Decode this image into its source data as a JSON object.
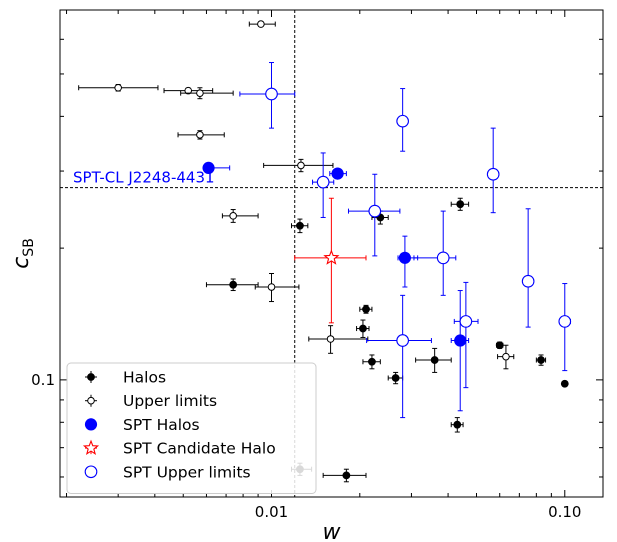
{
  "chart_data": {
    "type": "scatter",
    "xlabel": "w",
    "ylabel": "c",
    "ylabel_sub": "SB",
    "xscale": "log",
    "yscale": "log",
    "xlim": [
      0.0019,
      0.135
    ],
    "ylim": [
      0.054,
      0.7
    ],
    "xticks": [
      {
        "value": 0.01,
        "label": "0.01"
      },
      {
        "value": 0.1,
        "label": "0.10"
      }
    ],
    "yticks": [
      {
        "value": 0.1,
        "label": "0.1"
      }
    ],
    "reference_lines": {
      "vertical_x": 0.012,
      "horizontal_y": 0.275
    },
    "annotation": {
      "text": "SPT-CL J2248-4431",
      "color": "#0000ff"
    },
    "legend_position": "lower-left",
    "series": [
      {
        "name": "Halos",
        "color": "#000000",
        "marker": "filled-circle",
        "points": [
          {
            "x": 0.0074,
            "y": 0.165,
            "xerr": [
              0.0014,
              0.0016
            ],
            "yerr": [
              0.005,
              0.005
            ]
          },
          {
            "x": 0.0125,
            "y": 0.225,
            "xerr": [
              0.0008,
              0.0008
            ],
            "yerr": [
              0.008,
              0.008
            ]
          },
          {
            "x": 0.0235,
            "y": 0.235,
            "xerr": [
              0.0015,
              0.0015
            ],
            "yerr": [
              0.008,
              0.008
            ]
          },
          {
            "x": 0.044,
            "y": 0.252,
            "xerr": [
              0.003,
              0.003
            ],
            "yerr": [
              0.008,
              0.008
            ]
          },
          {
            "x": 0.021,
            "y": 0.145,
            "xerr": [
              0.001,
              0.001
            ],
            "yerr": [
              0.003,
              0.003
            ]
          },
          {
            "x": 0.0205,
            "y": 0.131,
            "xerr": [
              0.001,
              0.001
            ],
            "yerr": [
              0.006,
              0.006
            ]
          },
          {
            "x": 0.022,
            "y": 0.11,
            "xerr": [
              0.0015,
              0.0015
            ],
            "yerr": [
              0.004,
              0.004
            ]
          },
          {
            "x": 0.0265,
            "y": 0.101,
            "xerr": [
              0.0015,
              0.0015
            ],
            "yerr": [
              0.003,
              0.003
            ]
          },
          {
            "x": 0.036,
            "y": 0.111,
            "xerr": [
              0.005,
              0.005
            ],
            "yerr": [
              0.007,
              0.007
            ]
          },
          {
            "x": 0.043,
            "y": 0.079,
            "xerr": [
              0.002,
              0.002
            ],
            "yerr": [
              0.003,
              0.003
            ]
          },
          {
            "x": 0.06,
            "y": 0.12,
            "xerr": [
              0.0015,
              0.0015
            ],
            "yerr": [
              0.002,
              0.002
            ]
          },
          {
            "x": 0.083,
            "y": 0.111,
            "xerr": [
              0.003,
              0.003
            ],
            "yerr": [
              0.003,
              0.003
            ]
          },
          {
            "x": 0.1,
            "y": 0.098,
            "xerr": [
              0.0,
              0.0
            ],
            "yerr": [
              0.0,
              0.0
            ]
          },
          {
            "x": 0.0125,
            "y": 0.0625,
            "xerr": [
              0.0008,
              0.0012
            ],
            "yerr": [
              0.002,
              0.002
            ]
          },
          {
            "x": 0.018,
            "y": 0.0605,
            "xerr": [
              0.003,
              0.003
            ],
            "yerr": [
              0.002,
              0.002
            ]
          }
        ]
      },
      {
        "name": "Upper limits",
        "color": "#000000",
        "marker": "open-circle",
        "points": [
          {
            "x": 0.0092,
            "y": 0.65,
            "xerr": [
              0.0008,
              0.0011
            ],
            "yerr": [
              0.005,
              0.005
            ]
          },
          {
            "x": 0.003,
            "y": 0.465,
            "xerr": [
              0.0008,
              0.0011
            ],
            "yerr": [
              0.008,
              0.008
            ]
          },
          {
            "x": 0.0052,
            "y": 0.458,
            "xerr": [
              0.0009,
              0.0011
            ],
            "yerr": [
              0.006,
              0.006
            ]
          },
          {
            "x": 0.0057,
            "y": 0.452,
            "xerr": [
              0.0008,
              0.0017
            ],
            "yerr": [
              0.013,
              0.013
            ]
          },
          {
            "x": 0.0057,
            "y": 0.363,
            "xerr": [
              0.0009,
              0.0012
            ],
            "yerr": [
              0.008,
              0.008
            ]
          },
          {
            "x": 0.0126,
            "y": 0.309,
            "xerr": [
              0.0032,
              0.0036
            ],
            "yerr": [
              0.01,
              0.01
            ]
          },
          {
            "x": 0.0074,
            "y": 0.237,
            "xerr": [
              0.0006,
              0.0016
            ],
            "yerr": [
              0.008,
              0.008
            ]
          },
          {
            "x": 0.01,
            "y": 0.163,
            "xerr": [
              0.0012,
              0.0024
            ],
            "yerr": [
              0.012,
              0.012
            ]
          },
          {
            "x": 0.0159,
            "y": 0.124,
            "xerr": [
              0.0025,
              0.0054
            ],
            "yerr": [
              0.009,
              0.009
            ]
          },
          {
            "x": 0.063,
            "y": 0.113,
            "xerr": [
              0.004,
              0.004
            ],
            "yerr": [
              0.007,
              0.007
            ]
          }
        ]
      },
      {
        "name": "SPT Halos",
        "color": "#0000ff",
        "marker": "filled-circle-large",
        "points": [
          {
            "x": 0.0061,
            "y": 0.305,
            "xerr": [
              0.0,
              0.0011
            ],
            "yerr": [
              0.0,
              0.0
            ]
          },
          {
            "x": 0.0168,
            "y": 0.296,
            "xerr": [
              0.001,
              0.0012
            ],
            "yerr": [
              0.0,
              0.0
            ]
          },
          {
            "x": 0.0285,
            "y": 0.19,
            "xerr": [
              0.0015,
              0.003
            ],
            "yerr": [
              0.027,
              0.023
            ]
          },
          {
            "x": 0.044,
            "y": 0.123,
            "xerr": [
              0.003,
              0.003
            ],
            "yerr": [
              0.038,
              0.037
            ]
          }
        ]
      },
      {
        "name": "SPT Candidate Halo",
        "color": "#ff0000",
        "marker": "open-star",
        "points": [
          {
            "x": 0.016,
            "y": 0.19,
            "xerr": [
              0.004,
              0.005
            ],
            "yerr": [
              0.055,
              0.07
            ]
          }
        ]
      },
      {
        "name": "SPT Upper limits",
        "color": "#0000ff",
        "marker": "open-circle-large",
        "points": [
          {
            "x": 0.01,
            "y": 0.45,
            "xerr": [
              0.0022,
              0.002
            ],
            "yerr": [
              0.074,
              0.081
            ]
          },
          {
            "x": 0.028,
            "y": 0.39,
            "xerr": [
              0.0,
              0.0
            ],
            "yerr": [
              0.057,
              0.073
            ]
          },
          {
            "x": 0.057,
            "y": 0.295,
            "xerr": [
              0.0,
              0.0
            ],
            "yerr": [
              0.054,
              0.081
            ]
          },
          {
            "x": 0.015,
            "y": 0.283,
            "xerr": [
              0.0012,
              0.0013
            ],
            "yerr": [
              0.048,
              0.047
            ]
          },
          {
            "x": 0.0225,
            "y": 0.243,
            "xerr": [
              0.0042,
              0.0049
            ],
            "yerr": [
              0.051,
              0.052
            ]
          },
          {
            "x": 0.0385,
            "y": 0.19,
            "xerr": [
              0.0079,
              0.004
            ],
            "yerr": [
              0.034,
              0.053
            ]
          },
          {
            "x": 0.075,
            "y": 0.168,
            "xerr": [
              0.0,
              0.0
            ],
            "yerr": [
              0.036,
              0.078
            ]
          },
          {
            "x": 0.046,
            "y": 0.136,
            "xerr": [
              0.004,
              0.0046
            ],
            "yerr": [
              0.04,
              0.031
            ]
          },
          {
            "x": 0.028,
            "y": 0.123,
            "xerr": [
              0.0069,
              0.0071
            ],
            "yerr": [
              0.041,
              0.033
            ]
          },
          {
            "x": 0.1,
            "y": 0.136,
            "xerr": [
              0.0041,
              0.0046
            ],
            "yerr": [
              0.031,
              0.03
            ]
          }
        ]
      }
    ]
  }
}
